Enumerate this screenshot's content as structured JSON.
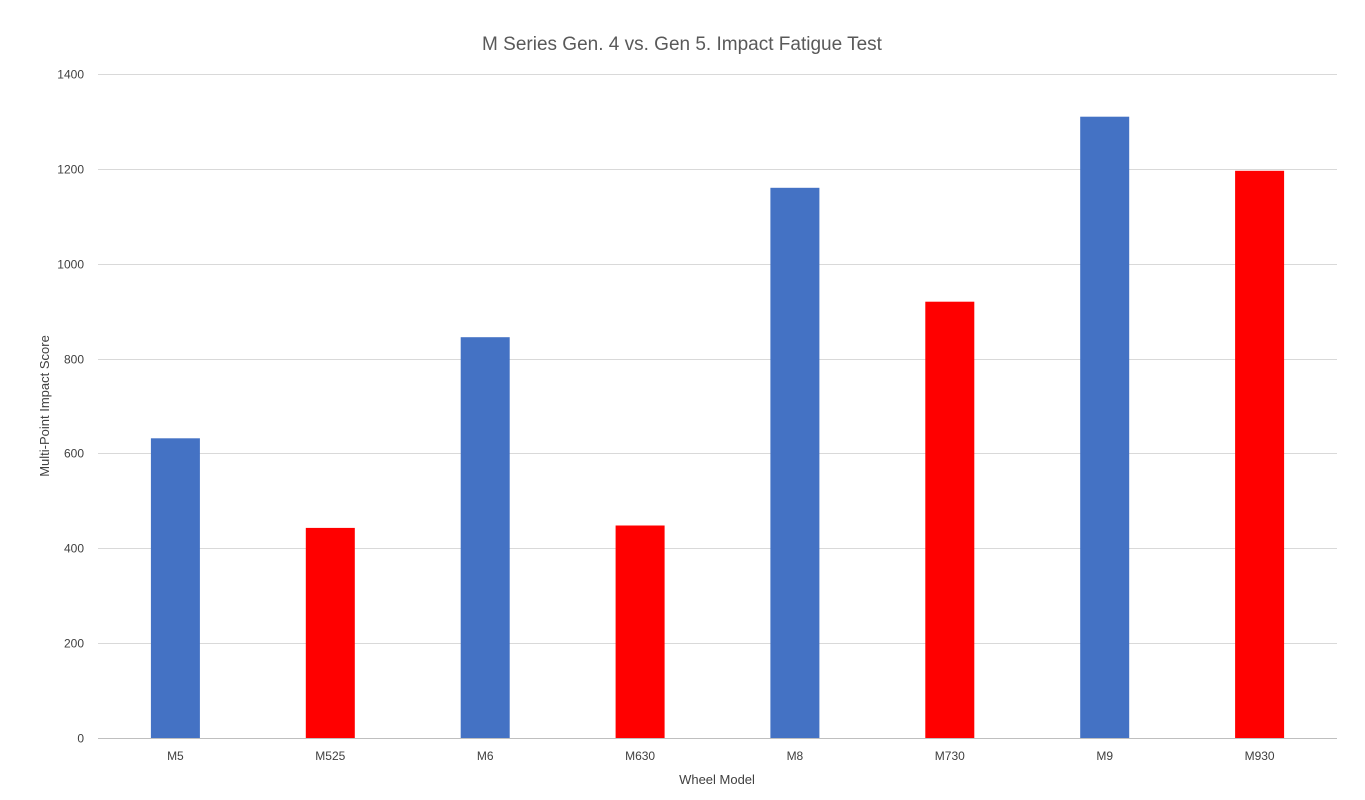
{
  "chart_data": {
    "type": "bar",
    "title": "M Series Gen. 4 vs. Gen 5. Impact Fatigue Test",
    "xlabel": "Wheel Model",
    "ylabel": "Multi-Point Impact Score",
    "categories": [
      "M5",
      "M525",
      "M6",
      "M630",
      "M8",
      "M730",
      "M9",
      "M930"
    ],
    "values": [
      632,
      443,
      845,
      448,
      1160,
      920,
      1310,
      1196
    ],
    "bar_colors": [
      "#4472C4",
      "#FF0000",
      "#4472C4",
      "#FF0000",
      "#4472C4",
      "#FF0000",
      "#4472C4",
      "#FF0000"
    ],
    "ylim": [
      0,
      1400
    ],
    "yticks": [
      0,
      200,
      400,
      600,
      800,
      1000,
      1200,
      1400
    ],
    "grid": true,
    "legend": "none"
  }
}
